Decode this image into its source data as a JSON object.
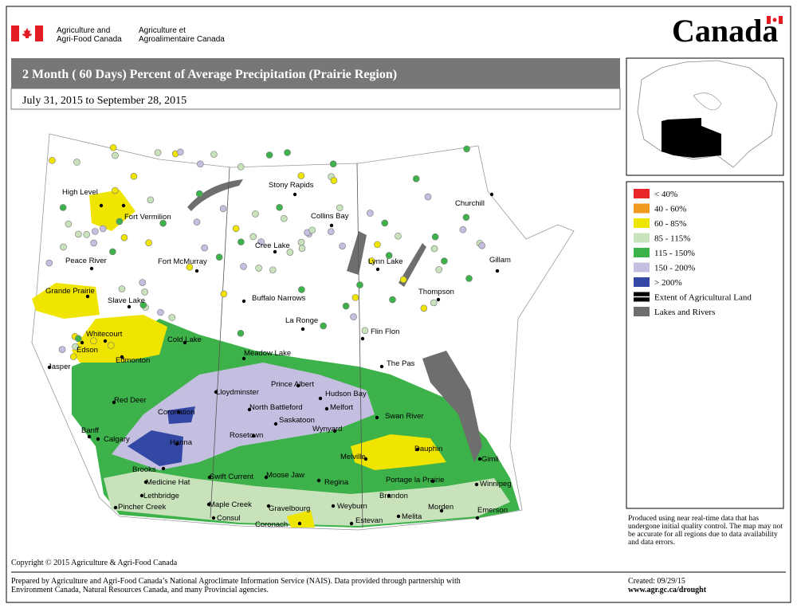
{
  "header": {
    "dept_en_1": "Agriculture and",
    "dept_en_2": "Agri-Food Canada",
    "dept_fr_1": "Agriculture et",
    "dept_fr_2": "Agroalimentaire Canada",
    "wordmark": "Canada"
  },
  "title": "2 Month ( 60 Days) Percent of Average Precipitation (Prairie Region)",
  "date_range": "July 31, 2015 to September 28, 2015",
  "legend": [
    {
      "label": "< 40%",
      "color": "#e8262a"
    },
    {
      "label": "40 - 60%",
      "color": "#f29a1f"
    },
    {
      "label": "60 - 85%",
      "color": "#f0e500"
    },
    {
      "label": "85 - 115%",
      "color": "#c8e3bb"
    },
    {
      "label": "115 - 150%",
      "color": "#3db24a"
    },
    {
      "label": "150 - 200%",
      "color": "#c4bfe0"
    },
    {
      "label": "> 200%",
      "color": "#3347a5"
    },
    {
      "label": "Extent of Agricultural Land",
      "color": "#000000"
    },
    {
      "label": "Lakes and Rivers",
      "color": "#6e6e6e"
    }
  ],
  "cities": [
    "High Level",
    "Fort Vermilion",
    "Peace River",
    "Fort McMurray",
    "Grande Prairie",
    "Slave Lake",
    "Whitecourt",
    "Edson",
    "Edmonton",
    "Cold Lake",
    "Jasper",
    "Meadow Lake",
    "Red Deer",
    "Lloydminster",
    "Coronation",
    "Banff",
    "Calgary",
    "Hanna",
    "Brooks",
    "Medicine Hat",
    "Lethbridge",
    "Pincher Creek",
    "Rosetown",
    "Swift Current",
    "Maple Creek",
    "Consul",
    "Moose Jaw",
    "Gravelbourg",
    "Coronach",
    "Regina",
    "Weyburn",
    "Estevan",
    "Saskatoon",
    "North Battleford",
    "Prince Albert",
    "Melfort",
    "Hudson Bay",
    "Wynyard",
    "Melville",
    "Buffalo Narrows",
    "Cree Lake",
    "Stony Rapids",
    "Collins Bay",
    "La Ronge",
    "Flin Flon",
    "The Pas",
    "Swan River",
    "Dauphin",
    "Gimli",
    "Winnipeg",
    "Portage la Prairie",
    "Brandon",
    "Morden",
    "Emerson",
    "Melita",
    "Churchill",
    "Lynn Lake",
    "Gillam",
    "Thompson"
  ],
  "note": "Produced using near real-time data that has undergone initial quality control.  The map may not be accurate for all regions due to data availability and data errors.",
  "copyright": "Copyright © 2015 Agriculture & Agri-Food Canada",
  "footer": {
    "prepared": "Prepared by Agriculture and Agri-Food Canada’s National Agroclimate Information Service (NAIS).   Data provided through partnership with Environment Canada, Natural Resources Canada, and many Provincial agencies.",
    "created": "Created: 09/29/15",
    "url": "www.agr.gc.ca/drought"
  }
}
